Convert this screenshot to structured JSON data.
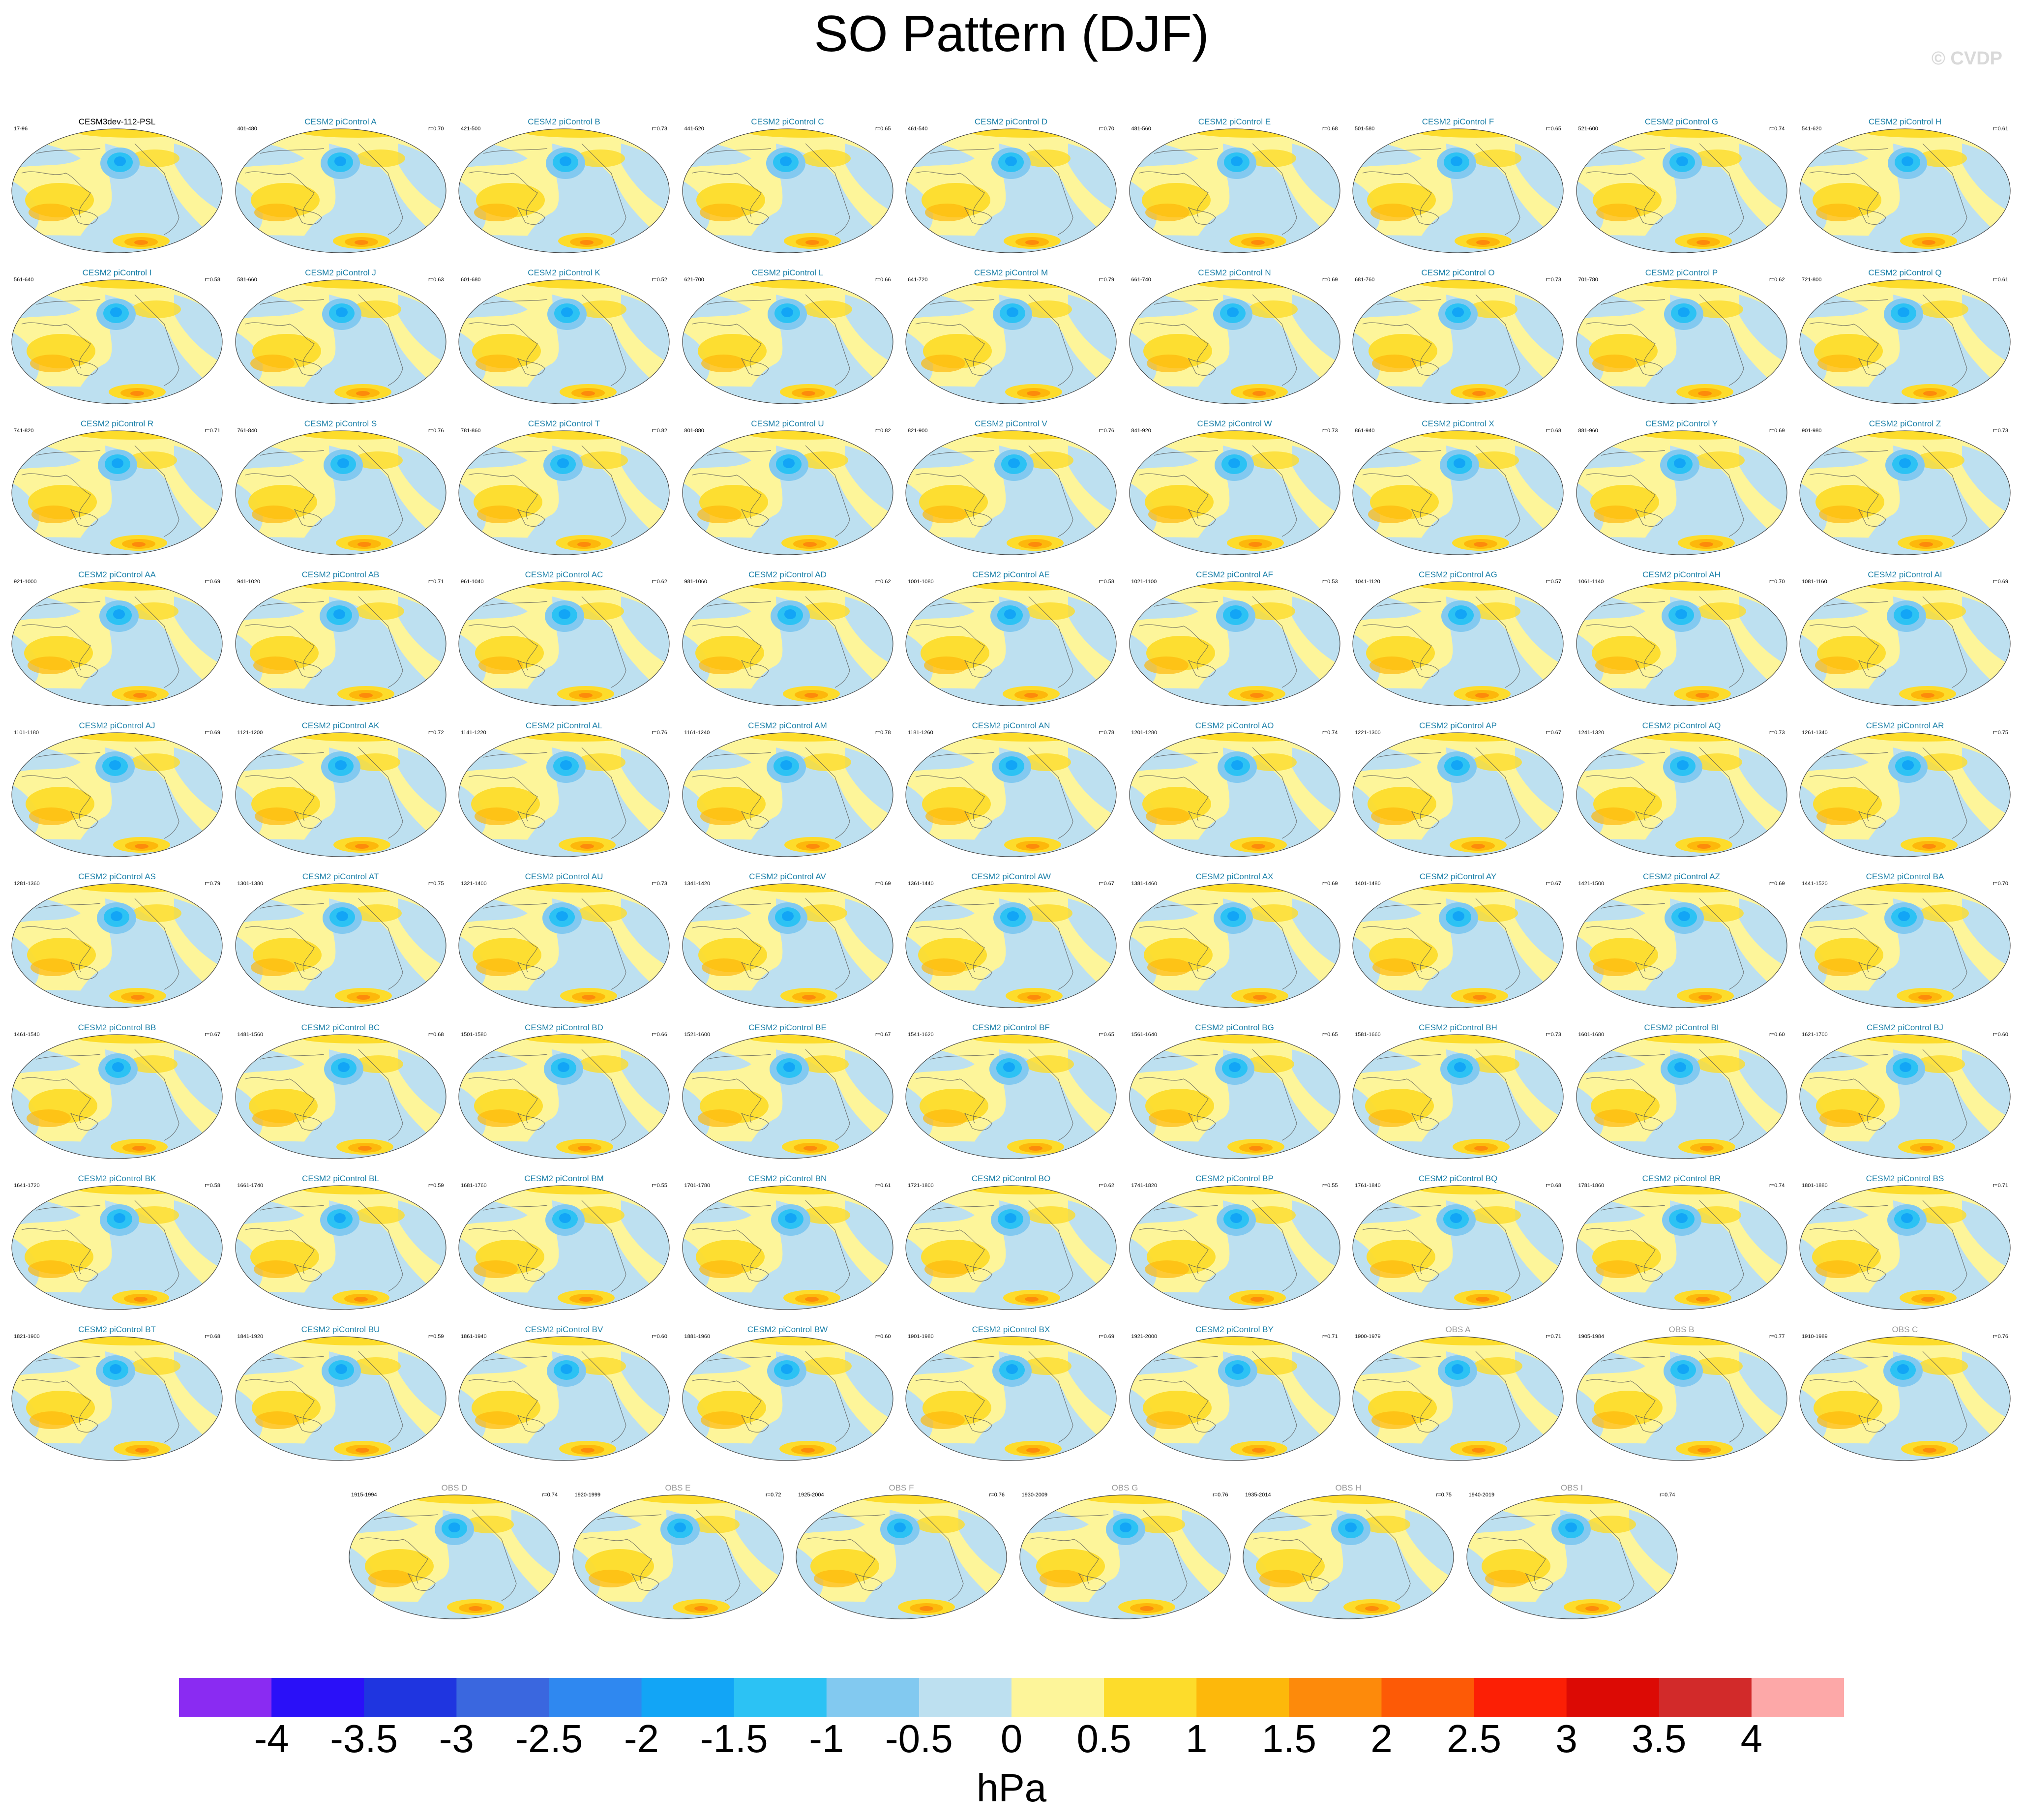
{
  "title": "SO Pattern (DJF)",
  "watermark": "© CVDP",
  "units": "hPa",
  "colorbar": {
    "colors": [
      "#8a2bf2",
      "#2a10f8",
      "#1f35e0",
      "#3a67df",
      "#2f88f0",
      "#12a5f6",
      "#2cc2f4",
      "#82c9f0",
      "#bde0f0",
      "#fdf59a",
      "#fddc2b",
      "#fdb80b",
      "#fd8a0b",
      "#fd5a06",
      "#fc1f05",
      "#dc0a05",
      "#d22a2a",
      "#fda8a8"
    ],
    "labels": [
      "-4",
      "-3.5",
      "-3",
      "-2.5",
      "-2",
      "-1.5",
      "-1",
      "-0.5",
      "0",
      "0.5",
      "1",
      "1.5",
      "2",
      "2.5",
      "3",
      "3.5",
      "4"
    ]
  },
  "panels": [
    {
      "title": "CESM3dev-112-PSL",
      "left": "17-96",
      "right": "",
      "kind": "main"
    },
    {
      "title": "CESM2 piControl A",
      "left": "401-480",
      "right": "r=0.70",
      "kind": "model"
    },
    {
      "title": "CESM2 piControl B",
      "left": "421-500",
      "right": "r=0.73",
      "kind": "model"
    },
    {
      "title": "CESM2 piControl C",
      "left": "441-520",
      "right": "r=0.65",
      "kind": "model"
    },
    {
      "title": "CESM2 piControl D",
      "left": "461-540",
      "right": "r=0.70",
      "kind": "model"
    },
    {
      "title": "CESM2 piControl E",
      "left": "481-560",
      "right": "r=0.68",
      "kind": "model"
    },
    {
      "title": "CESM2 piControl F",
      "left": "501-580",
      "right": "r=0.65",
      "kind": "model"
    },
    {
      "title": "CESM2 piControl G",
      "left": "521-600",
      "right": "r=0.74",
      "kind": "model"
    },
    {
      "title": "CESM2 piControl H",
      "left": "541-620",
      "right": "r=0.61",
      "kind": "model"
    },
    {
      "title": "CESM2 piControl I",
      "left": "561-640",
      "right": "r=0.58",
      "kind": "model"
    },
    {
      "title": "CESM2 piControl J",
      "left": "581-660",
      "right": "r=0.63",
      "kind": "model"
    },
    {
      "title": "CESM2 piControl K",
      "left": "601-680",
      "right": "r=0.52",
      "kind": "model"
    },
    {
      "title": "CESM2 piControl L",
      "left": "621-700",
      "right": "r=0.66",
      "kind": "model"
    },
    {
      "title": "CESM2 piControl M",
      "left": "641-720",
      "right": "r=0.79",
      "kind": "model"
    },
    {
      "title": "CESM2 piControl N",
      "left": "661-740",
      "right": "r=0.69",
      "kind": "model"
    },
    {
      "title": "CESM2 piControl O",
      "left": "681-760",
      "right": "r=0.73",
      "kind": "model"
    },
    {
      "title": "CESM2 piControl P",
      "left": "701-780",
      "right": "r=0.62",
      "kind": "model"
    },
    {
      "title": "CESM2 piControl Q",
      "left": "721-800",
      "right": "r=0.61",
      "kind": "model"
    },
    {
      "title": "CESM2 piControl R",
      "left": "741-820",
      "right": "r=0.71",
      "kind": "model"
    },
    {
      "title": "CESM2 piControl S",
      "left": "761-840",
      "right": "r=0.76",
      "kind": "model"
    },
    {
      "title": "CESM2 piControl T",
      "left": "781-860",
      "right": "r=0.82",
      "kind": "model"
    },
    {
      "title": "CESM2 piControl U",
      "left": "801-880",
      "right": "r=0.82",
      "kind": "model"
    },
    {
      "title": "CESM2 piControl V",
      "left": "821-900",
      "right": "r=0.76",
      "kind": "model"
    },
    {
      "title": "CESM2 piControl W",
      "left": "841-920",
      "right": "r=0.73",
      "kind": "model"
    },
    {
      "title": "CESM2 piControl X",
      "left": "861-940",
      "right": "r=0.68",
      "kind": "model"
    },
    {
      "title": "CESM2 piControl Y",
      "left": "881-960",
      "right": "r=0.69",
      "kind": "model"
    },
    {
      "title": "CESM2 piControl Z",
      "left": "901-980",
      "right": "r=0.73",
      "kind": "model"
    },
    {
      "title": "CESM2 piControl AA",
      "left": "921-1000",
      "right": "r=0.69",
      "kind": "model"
    },
    {
      "title": "CESM2 piControl AB",
      "left": "941-1020",
      "right": "r=0.71",
      "kind": "model"
    },
    {
      "title": "CESM2 piControl AC",
      "left": "961-1040",
      "right": "r=0.62",
      "kind": "model"
    },
    {
      "title": "CESM2 piControl AD",
      "left": "981-1060",
      "right": "r=0.62",
      "kind": "model"
    },
    {
      "title": "CESM2 piControl AE",
      "left": "1001-1080",
      "right": "r=0.58",
      "kind": "model"
    },
    {
      "title": "CESM2 piControl AF",
      "left": "1021-1100",
      "right": "r=0.53",
      "kind": "model"
    },
    {
      "title": "CESM2 piControl AG",
      "left": "1041-1120",
      "right": "r=0.57",
      "kind": "model"
    },
    {
      "title": "CESM2 piControl AH",
      "left": "1061-1140",
      "right": "r=0.70",
      "kind": "model"
    },
    {
      "title": "CESM2 piControl AI",
      "left": "1081-1160",
      "right": "r=0.69",
      "kind": "model"
    },
    {
      "title": "CESM2 piControl AJ",
      "left": "1101-1180",
      "right": "r=0.69",
      "kind": "model"
    },
    {
      "title": "CESM2 piControl AK",
      "left": "1121-1200",
      "right": "r=0.72",
      "kind": "model"
    },
    {
      "title": "CESM2 piControl AL",
      "left": "1141-1220",
      "right": "r=0.76",
      "kind": "model"
    },
    {
      "title": "CESM2 piControl AM",
      "left": "1161-1240",
      "right": "r=0.78",
      "kind": "model"
    },
    {
      "title": "CESM2 piControl AN",
      "left": "1181-1260",
      "right": "r=0.78",
      "kind": "model"
    },
    {
      "title": "CESM2 piControl AO",
      "left": "1201-1280",
      "right": "r=0.74",
      "kind": "model"
    },
    {
      "title": "CESM2 piControl AP",
      "left": "1221-1300",
      "right": "r=0.67",
      "kind": "model"
    },
    {
      "title": "CESM2 piControl AQ",
      "left": "1241-1320",
      "right": "r=0.73",
      "kind": "model"
    },
    {
      "title": "CESM2 piControl AR",
      "left": "1261-1340",
      "right": "r=0.75",
      "kind": "model"
    },
    {
      "title": "CESM2 piControl AS",
      "left": "1281-1360",
      "right": "r=0.79",
      "kind": "model"
    },
    {
      "title": "CESM2 piControl AT",
      "left": "1301-1380",
      "right": "r=0.75",
      "kind": "model"
    },
    {
      "title": "CESM2 piControl AU",
      "left": "1321-1400",
      "right": "r=0.73",
      "kind": "model"
    },
    {
      "title": "CESM2 piControl AV",
      "left": "1341-1420",
      "right": "r=0.69",
      "kind": "model"
    },
    {
      "title": "CESM2 piControl AW",
      "left": "1361-1440",
      "right": "r=0.67",
      "kind": "model"
    },
    {
      "title": "CESM2 piControl AX",
      "left": "1381-1460",
      "right": "r=0.69",
      "kind": "model"
    },
    {
      "title": "CESM2 piControl AY",
      "left": "1401-1480",
      "right": "r=0.67",
      "kind": "model"
    },
    {
      "title": "CESM2 piControl AZ",
      "left": "1421-1500",
      "right": "r=0.69",
      "kind": "model"
    },
    {
      "title": "CESM2 piControl BA",
      "left": "1441-1520",
      "right": "r=0.70",
      "kind": "model"
    },
    {
      "title": "CESM2 piControl BB",
      "left": "1461-1540",
      "right": "r=0.67",
      "kind": "model"
    },
    {
      "title": "CESM2 piControl BC",
      "left": "1481-1560",
      "right": "r=0.68",
      "kind": "model"
    },
    {
      "title": "CESM2 piControl BD",
      "left": "1501-1580",
      "right": "r=0.66",
      "kind": "model"
    },
    {
      "title": "CESM2 piControl BE",
      "left": "1521-1600",
      "right": "r=0.67",
      "kind": "model"
    },
    {
      "title": "CESM2 piControl BF",
      "left": "1541-1620",
      "right": "r=0.65",
      "kind": "model"
    },
    {
      "title": "CESM2 piControl BG",
      "left": "1561-1640",
      "right": "r=0.65",
      "kind": "model"
    },
    {
      "title": "CESM2 piControl BH",
      "left": "1581-1660",
      "right": "r=0.73",
      "kind": "model"
    },
    {
      "title": "CESM2 piControl BI",
      "left": "1601-1680",
      "right": "r=0.60",
      "kind": "model"
    },
    {
      "title": "CESM2 piControl BJ",
      "left": "1621-1700",
      "right": "r=0.60",
      "kind": "model"
    },
    {
      "title": "CESM2 piControl BK",
      "left": "1641-1720",
      "right": "r=0.58",
      "kind": "model"
    },
    {
      "title": "CESM2 piControl BL",
      "left": "1661-1740",
      "right": "r=0.59",
      "kind": "model"
    },
    {
      "title": "CESM2 piControl BM",
      "left": "1681-1760",
      "right": "r=0.55",
      "kind": "model"
    },
    {
      "title": "CESM2 piControl BN",
      "left": "1701-1780",
      "right": "r=0.61",
      "kind": "model"
    },
    {
      "title": "CESM2 piControl BO",
      "left": "1721-1800",
      "right": "r=0.62",
      "kind": "model"
    },
    {
      "title": "CESM2 piControl BP",
      "left": "1741-1820",
      "right": "r=0.55",
      "kind": "model"
    },
    {
      "title": "CESM2 piControl BQ",
      "left": "1761-1840",
      "right": "r=0.68",
      "kind": "model"
    },
    {
      "title": "CESM2 piControl BR",
      "left": "1781-1860",
      "right": "r=0.74",
      "kind": "model"
    },
    {
      "title": "CESM2 piControl BS",
      "left": "1801-1880",
      "right": "r=0.71",
      "kind": "model"
    },
    {
      "title": "CESM2 piControl BT",
      "left": "1821-1900",
      "right": "r=0.68",
      "kind": "model"
    },
    {
      "title": "CESM2 piControl BU",
      "left": "1841-1920",
      "right": "r=0.59",
      "kind": "model"
    },
    {
      "title": "CESM2 piControl BV",
      "left": "1861-1940",
      "right": "r=0.60",
      "kind": "model"
    },
    {
      "title": "CESM2 piControl BW",
      "left": "1881-1960",
      "right": "r=0.60",
      "kind": "model"
    },
    {
      "title": "CESM2 piControl BX",
      "left": "1901-1980",
      "right": "r=0.69",
      "kind": "model"
    },
    {
      "title": "CESM2 piControl BY",
      "left": "1921-2000",
      "right": "r=0.71",
      "kind": "model"
    },
    {
      "title": "OBS A",
      "left": "1900-1979",
      "right": "r=0.71",
      "kind": "obs"
    },
    {
      "title": "OBS B",
      "left": "1905-1984",
      "right": "r=0.77",
      "kind": "obs"
    },
    {
      "title": "OBS C",
      "left": "1910-1989",
      "right": "r=0.76",
      "kind": "obs"
    },
    {
      "title": "OBS D",
      "left": "1915-1994",
      "right": "r=0.74",
      "kind": "obs"
    },
    {
      "title": "OBS E",
      "left": "1920-1999",
      "right": "r=0.72",
      "kind": "obs"
    },
    {
      "title": "OBS F",
      "left": "1925-2004",
      "right": "r=0.76",
      "kind": "obs"
    },
    {
      "title": "OBS G",
      "left": "1930-2009",
      "right": "r=0.76",
      "kind": "obs"
    },
    {
      "title": "OBS H",
      "left": "1935-2014",
      "right": "r=0.75",
      "kind": "obs"
    },
    {
      "title": "OBS I",
      "left": "1940-2019",
      "right": "r=0.74",
      "kind": "obs"
    }
  ]
}
